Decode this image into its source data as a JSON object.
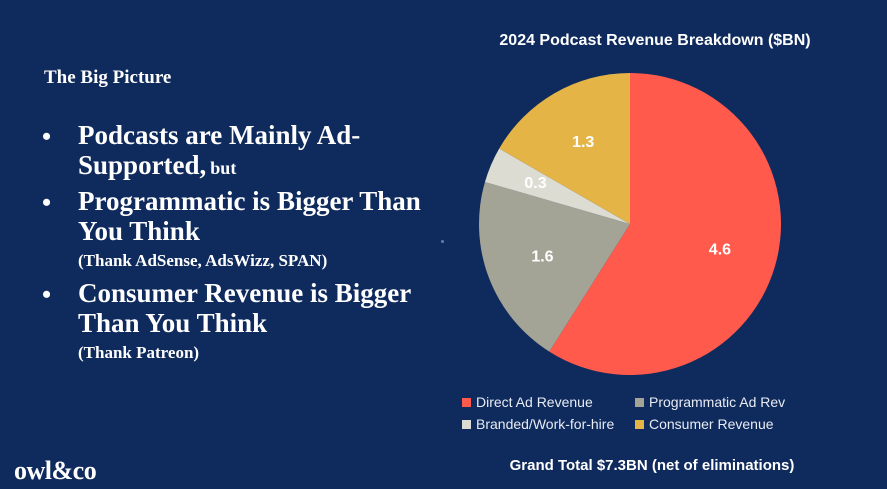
{
  "slide": {
    "heading": "The Big Picture",
    "bullets": [
      {
        "main": "Podcasts are Mainly Ad-Supported,",
        "inline_note": "but",
        "note": ""
      },
      {
        "main": "Programmatic is Bigger Than You Think",
        "inline_note": "",
        "note": "(Thank AdSense, AdsWizz, SPAN)"
      },
      {
        "main": "Consumer Revenue is Bigger Than You Think",
        "inline_note": "",
        "note": "(Thank Patreon)"
      }
    ],
    "bullet_symbol": "•",
    "logo": "owl&co",
    "background_color": "#0f2a5c"
  },
  "chart_data": {
    "type": "pie",
    "title": "2024 Podcast Revenue Breakdown ($BN)",
    "categories": [
      "Direct Ad Revenue",
      "Programmatic Ad Rev",
      "Branded/Work-for-hire",
      "Consumer Revenue"
    ],
    "values": [
      4.6,
      1.6,
      0.3,
      1.3
    ],
    "value_labels": [
      "4.6",
      "1.6",
      "0.3",
      "1.3"
    ],
    "colors": [
      "#ff5a4c",
      "#a3a396",
      "#dcdcd2",
      "#e4b447"
    ],
    "legend": {
      "placement": "bottom",
      "entries": [
        "Direct Ad Revenue",
        "Programmatic Ad Rev",
        "Branded/Work-for-hire",
        "Consumer Revenue"
      ]
    },
    "start": "top (12 o'clock), clockwise",
    "footer": "Grand Total $7.3BN (net of eliminations)"
  }
}
